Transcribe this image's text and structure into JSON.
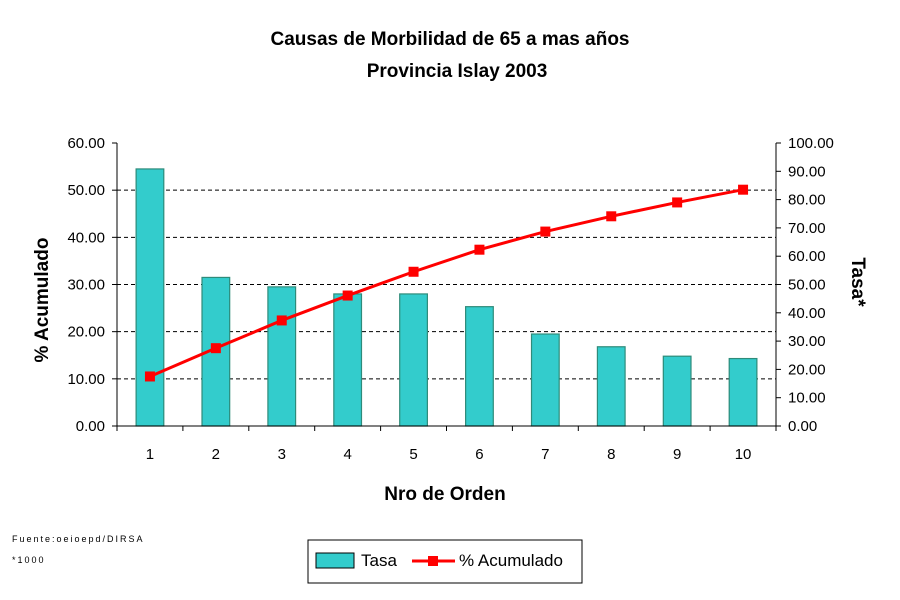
{
  "chart_data": {
    "type": "bar",
    "title": "Causas de Morbilidad de 65 a mas años",
    "subtitle": "Provincia Islay 2003",
    "xlabel": "Nro de Orden",
    "ylabel_left": "% Acumulado",
    "ylabel_right": "Tasa*",
    "categories": [
      "1",
      "2",
      "3",
      "4",
      "5",
      "6",
      "7",
      "8",
      "9",
      "10"
    ],
    "left_axis": {
      "range": [
        0,
        60
      ],
      "ticks": [
        "0.00",
        "10.00",
        "20.00",
        "30.00",
        "40.00",
        "50.00",
        "60.00"
      ]
    },
    "right_axis": {
      "range": [
        0,
        100
      ],
      "ticks": [
        "0.00",
        "10.00",
        "20.00",
        "30.00",
        "40.00",
        "50.00",
        "60.00",
        "70.00",
        "80.00",
        "90.00",
        "100.00"
      ]
    },
    "grid": true,
    "legend_position": "bottom",
    "series": [
      {
        "name": "Tasa",
        "type": "bar",
        "axis": "left",
        "color": "#33CCCC",
        "values": [
          54.5,
          31.5,
          29.5,
          28.0,
          28.0,
          25.3,
          19.5,
          16.8,
          14.8,
          14.3
        ]
      },
      {
        "name": "% Acumulado",
        "type": "line",
        "axis": "right",
        "color": "#FF0000",
        "values": [
          17.5,
          27.5,
          37.3,
          46.1,
          54.5,
          62.3,
          68.7,
          74.1,
          79.0,
          83.5
        ]
      }
    ]
  },
  "footnotes": {
    "source": "Fuente:oeioepd/DIRSA",
    "note": "*1000"
  }
}
